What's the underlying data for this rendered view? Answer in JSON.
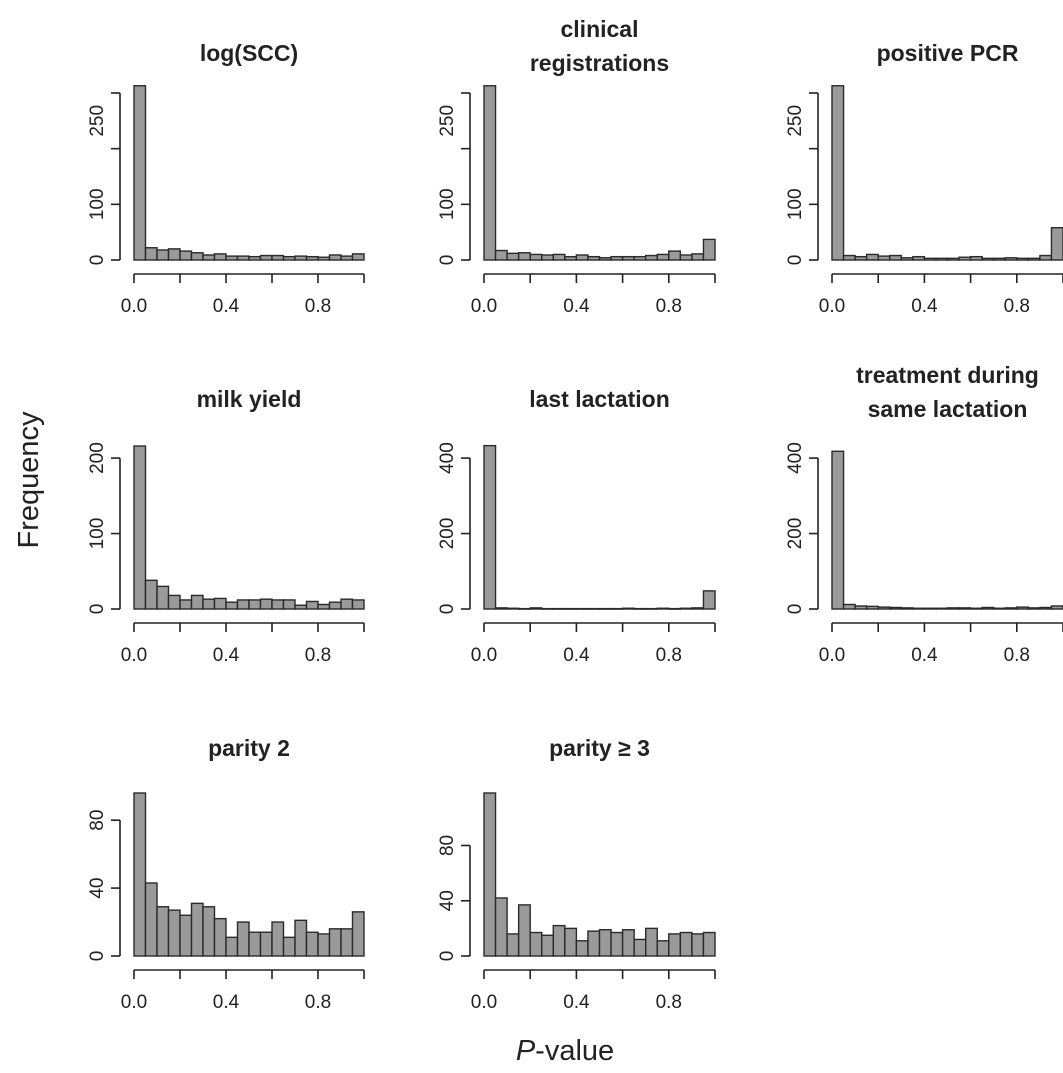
{
  "figure": {
    "ylabel": "Frequency",
    "xlabel_italic": "P",
    "xlabel_rest": "-value"
  },
  "chart_data": [
    {
      "type": "bar",
      "title": [
        "log(SCC)"
      ],
      "xlim": [
        0,
        1
      ],
      "ylim": [
        0,
        300
      ],
      "xticks": [
        "0.0",
        "0.4",
        "0.8"
      ],
      "yticks": [
        "0",
        "100",
        "250"
      ],
      "ytick_values": [
        0,
        100,
        250
      ],
      "values": [
        313,
        22,
        18,
        20,
        16,
        13,
        9,
        11,
        7,
        7,
        6,
        8,
        8,
        6,
        7,
        6,
        5,
        9,
        7,
        11
      ]
    },
    {
      "type": "bar",
      "title": [
        "clinical",
        "registrations"
      ],
      "xlim": [
        0,
        1
      ],
      "ylim": [
        0,
        300
      ],
      "xticks": [
        "0.0",
        "0.4",
        "0.8"
      ],
      "yticks": [
        "0",
        "100",
        "250"
      ],
      "ytick_values": [
        0,
        100,
        250
      ],
      "values": [
        313,
        17,
        12,
        13,
        10,
        9,
        10,
        6,
        9,
        6,
        4,
        6,
        6,
        6,
        8,
        10,
        16,
        9,
        11,
        37
      ]
    },
    {
      "type": "bar",
      "title": [
        "positive PCR"
      ],
      "xlim": [
        0,
        1
      ],
      "ylim": [
        0,
        300
      ],
      "xticks": [
        "0.0",
        "0.4",
        "0.8"
      ],
      "yticks": [
        "0",
        "100",
        "250"
      ],
      "ytick_values": [
        0,
        100,
        250
      ],
      "values": [
        313,
        8,
        6,
        10,
        7,
        8,
        4,
        6,
        3,
        3,
        3,
        5,
        6,
        3,
        3,
        4,
        3,
        3,
        8,
        58
      ]
    },
    {
      "type": "bar",
      "title": [
        "milk yield"
      ],
      "xlim": [
        0,
        1
      ],
      "ylim": [
        0,
        220
      ],
      "xticks": [
        "0.0",
        "0.4",
        "0.8"
      ],
      "yticks": [
        "0",
        "100",
        "200"
      ],
      "ytick_values": [
        0,
        100,
        200
      ],
      "values": [
        216,
        38,
        30,
        18,
        12,
        18,
        13,
        14,
        9,
        12,
        12,
        13,
        12,
        12,
        5,
        10,
        6,
        9,
        13,
        12
      ]
    },
    {
      "type": "bar",
      "title": [
        "last lactation"
      ],
      "xlim": [
        0,
        1
      ],
      "ylim": [
        0,
        440
      ],
      "xticks": [
        "0.0",
        "0.4",
        "0.8"
      ],
      "yticks": [
        "0",
        "200",
        "400"
      ],
      "ytick_values": [
        0,
        200,
        400
      ],
      "values": [
        433,
        3,
        2,
        1,
        3,
        1,
        1,
        1,
        1,
        1,
        1,
        1,
        2,
        1,
        1,
        2,
        1,
        2,
        3,
        48
      ]
    },
    {
      "type": "bar",
      "title": [
        "treatment during",
        "same lactation"
      ],
      "xlim": [
        0,
        1
      ],
      "ylim": [
        0,
        440
      ],
      "xticks": [
        "0.0",
        "0.4",
        "0.8"
      ],
      "yticks": [
        "0",
        "200",
        "400"
      ],
      "ytick_values": [
        0,
        200,
        400
      ],
      "values": [
        418,
        12,
        8,
        7,
        5,
        4,
        3,
        2,
        2,
        2,
        3,
        3,
        2,
        4,
        2,
        3,
        5,
        3,
        4,
        8
      ]
    },
    {
      "type": "bar",
      "title": [
        "parity 2"
      ],
      "xlim": [
        0,
        1
      ],
      "ylim": [
        0,
        96
      ],
      "xticks": [
        "0.0",
        "0.4",
        "0.8"
      ],
      "yticks": [
        "0",
        "40",
        "80"
      ],
      "ytick_values": [
        0,
        40,
        80
      ],
      "values": [
        96,
        43,
        29,
        27,
        24,
        31,
        29,
        22,
        11,
        20,
        14,
        14,
        20,
        11,
        21,
        14,
        13,
        16,
        16,
        26
      ]
    },
    {
      "type": "bar",
      "title": [
        "parity ≥ 3"
      ],
      "xlim": [
        0,
        1
      ],
      "ylim": [
        0,
        118
      ],
      "xticks": [
        "0.0",
        "0.4",
        "0.8"
      ],
      "yticks": [
        "0",
        "40",
        "80"
      ],
      "ytick_values": [
        0,
        40,
        80
      ],
      "values": [
        118,
        42,
        16,
        37,
        17,
        15,
        22,
        20,
        11,
        18,
        19,
        17,
        19,
        12,
        20,
        11,
        16,
        17,
        16,
        17
      ]
    }
  ]
}
